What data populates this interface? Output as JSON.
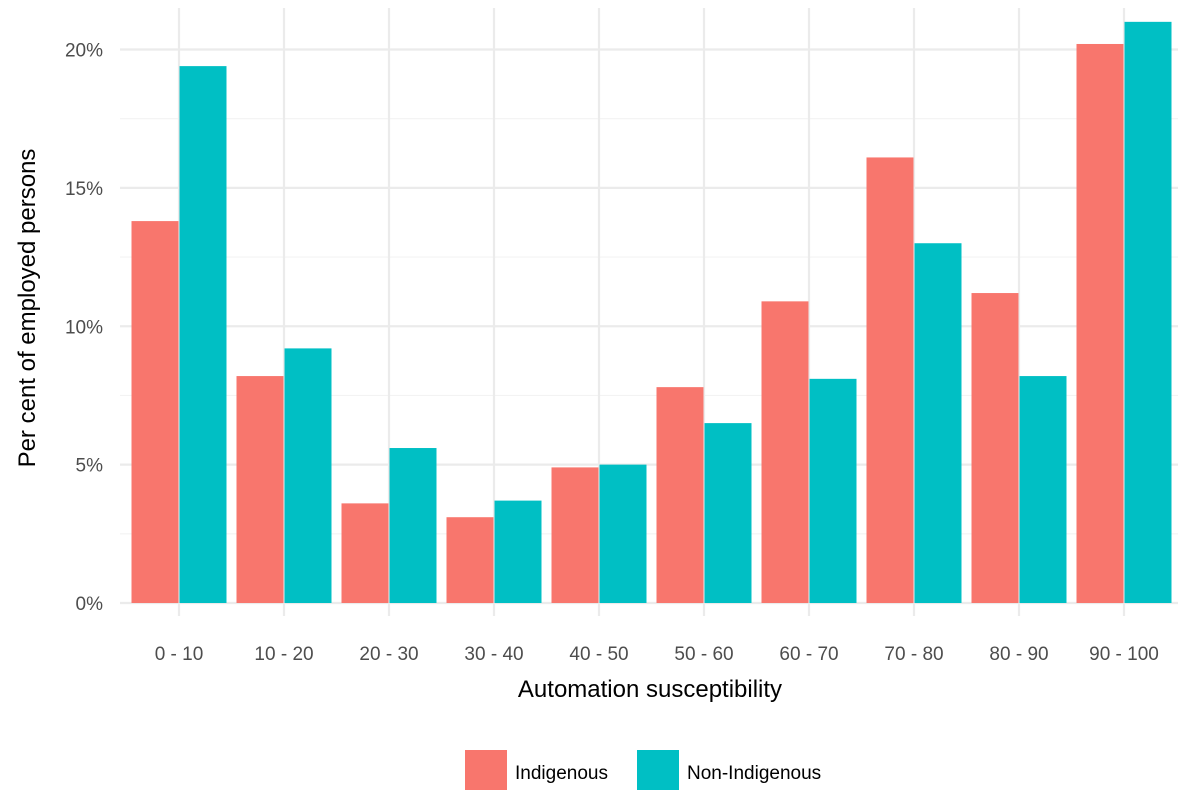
{
  "chart_data": {
    "type": "bar",
    "title": "",
    "xlabel": "Automation susceptibility",
    "ylabel": "Per cent of employed persons",
    "categories": [
      "0 - 10",
      "10 - 20",
      "20 - 30",
      "30 - 40",
      "40 - 50",
      "50 - 60",
      "60 - 70",
      "70 - 80",
      "80 - 90",
      "90 - 100"
    ],
    "series": [
      {
        "name": "Indigenous",
        "color": "#F8766D",
        "values": [
          13.8,
          8.2,
          3.6,
          3.1,
          4.9,
          7.8,
          10.9,
          16.1,
          11.2,
          20.2
        ]
      },
      {
        "name": "Non-Indigenous",
        "color": "#00BFC4",
        "values": [
          19.4,
          9.2,
          5.6,
          3.7,
          5.0,
          6.5,
          8.1,
          13.0,
          8.2,
          21.0
        ]
      }
    ],
    "ylim": [
      0,
      21.5
    ],
    "y_ticks": [
      0,
      5,
      10,
      15,
      20
    ],
    "y_tick_labels": [
      "0%",
      "5%",
      "10%",
      "15%",
      "20%"
    ],
    "grid": true,
    "legend_position": "bottom"
  }
}
